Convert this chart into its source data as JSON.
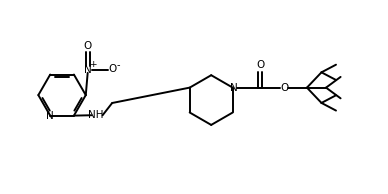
{
  "background_color": "#ffffff",
  "line_color": "#000000",
  "lw": 1.4,
  "figsize": [
    3.88,
    1.94
  ],
  "dpi": 100,
  "xlim": [
    0,
    10
  ],
  "ylim": [
    0,
    5
  ]
}
